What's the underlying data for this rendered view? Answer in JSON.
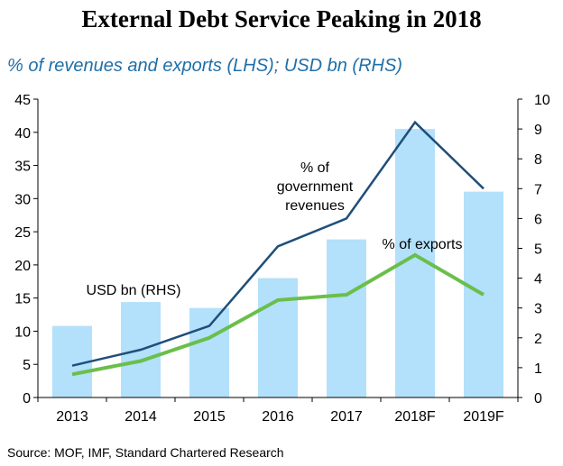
{
  "title": "External Debt Service Peaking in 2018",
  "subtitle": "% of revenues and exports (LHS); USD bn (RHS)",
  "source": "Source: MOF, IMF, Standard Chartered Research",
  "colors": {
    "bars": "#b3e0fa",
    "gov_line": "#1f4e79",
    "exports_line": "#6abf4b"
  },
  "chart_data": {
    "type": "bar+line",
    "categories": [
      "2013",
      "2014",
      "2015",
      "2016",
      "2017",
      "2018F",
      "2019F"
    ],
    "left_axis": {
      "range": [
        0,
        45
      ],
      "ticks": [
        "0",
        "5",
        "10",
        "15",
        "20",
        "25",
        "30",
        "35",
        "40",
        "45"
      ]
    },
    "right_axis": {
      "range": [
        0,
        10
      ],
      "ticks": [
        "0",
        "1",
        "2",
        "3",
        "4",
        "5",
        "6",
        "7",
        "8",
        "9",
        "10"
      ]
    },
    "series": [
      {
        "name": "USD bn (RHS)",
        "type": "bar",
        "axis": "right",
        "values": [
          2.4,
          3.2,
          3.0,
          4.0,
          5.3,
          9.0,
          6.9
        ]
      },
      {
        "name": "% of government revenues",
        "type": "line",
        "axis": "left",
        "values": [
          4.8,
          7.2,
          10.8,
          22.8,
          27.0,
          41.5,
          31.5
        ]
      },
      {
        "name": "% of exports",
        "type": "line",
        "axis": "left",
        "values": [
          3.5,
          5.5,
          9.0,
          14.7,
          15.5,
          21.5,
          15.5
        ]
      }
    ],
    "annotations": {
      "bars_label": "USD bn (RHS)",
      "gov_label": [
        "% of",
        "government",
        "revenues"
      ],
      "exports_label": "% of exports"
    }
  }
}
